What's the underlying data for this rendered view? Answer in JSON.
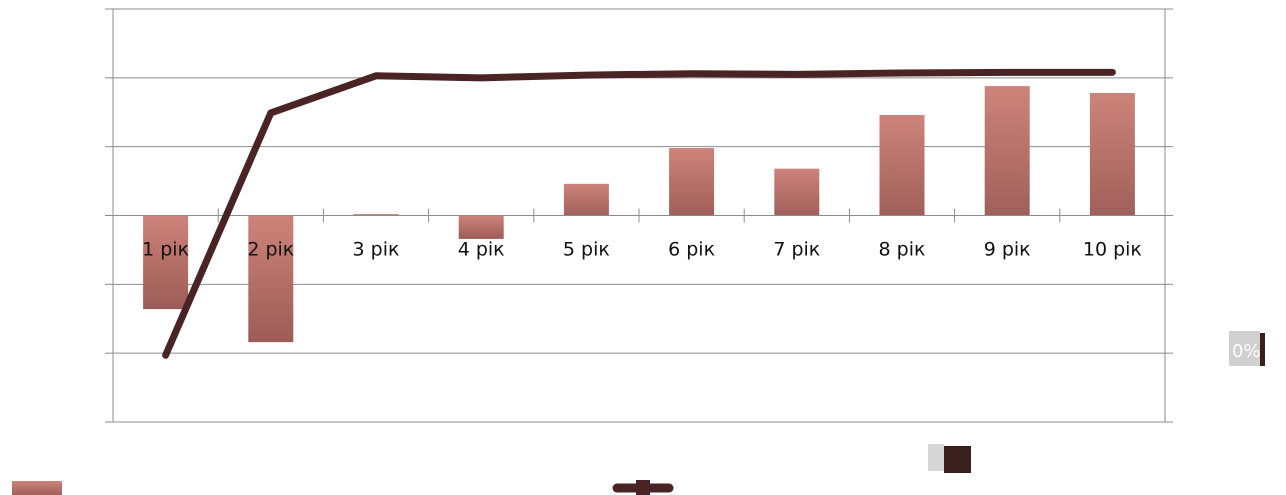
{
  "chart_data": {
    "type": "bar",
    "categories": [
      "1 рік",
      "2 рік",
      "3 рік",
      "4 рік",
      "5 рік",
      "6 рік",
      "7 рік",
      "8 рік",
      "9 рік",
      "10 рік"
    ],
    "series": [
      {
        "kind": "bar",
        "color": "#c07068",
        "values": [
          -1.36,
          -1.84,
          0.02,
          -0.34,
          0.46,
          0.98,
          0.68,
          1.46,
          1.88,
          1.78
        ]
      },
      {
        "kind": "line",
        "color": "#4a2424",
        "values": [
          -2.03,
          1.49,
          2.03,
          2.0,
          2.04,
          2.06,
          2.05,
          2.07,
          2.08,
          2.08
        ]
      }
    ],
    "ylim": [
      -3,
      3
    ],
    "grid": true,
    "legend_position": "bottom",
    "edge_label": "0%"
  }
}
